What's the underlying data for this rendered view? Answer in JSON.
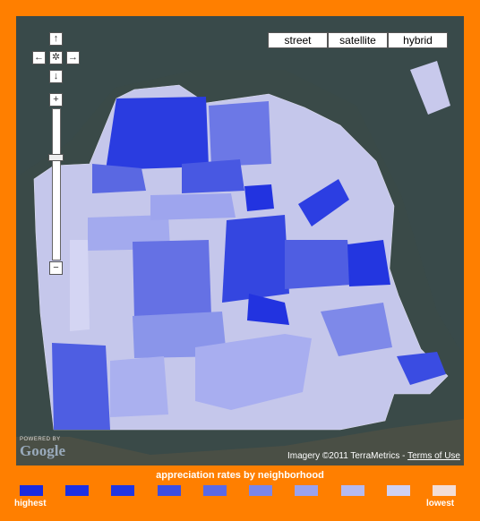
{
  "map_buttons": [
    "street",
    "satellite",
    "hybrid"
  ],
  "attribution": {
    "imagery": "Imagery ©2011 TerraMetrics -",
    "terms": "Terms of Use"
  },
  "powered_by": {
    "small": "POWERED BY",
    "logo": "Google"
  },
  "legend": {
    "title": "appreciation rates by neighborhood",
    "high_label": "highest",
    "low_label": "lowest",
    "colors": [
      "#1a2be0",
      "#1c30e4",
      "#2036e2",
      "#3b4ee4",
      "#5a69e6",
      "#7a86ea",
      "#9aa2ee",
      "#b5baf0",
      "#cfd1f3",
      "#f3ddd6"
    ]
  }
}
